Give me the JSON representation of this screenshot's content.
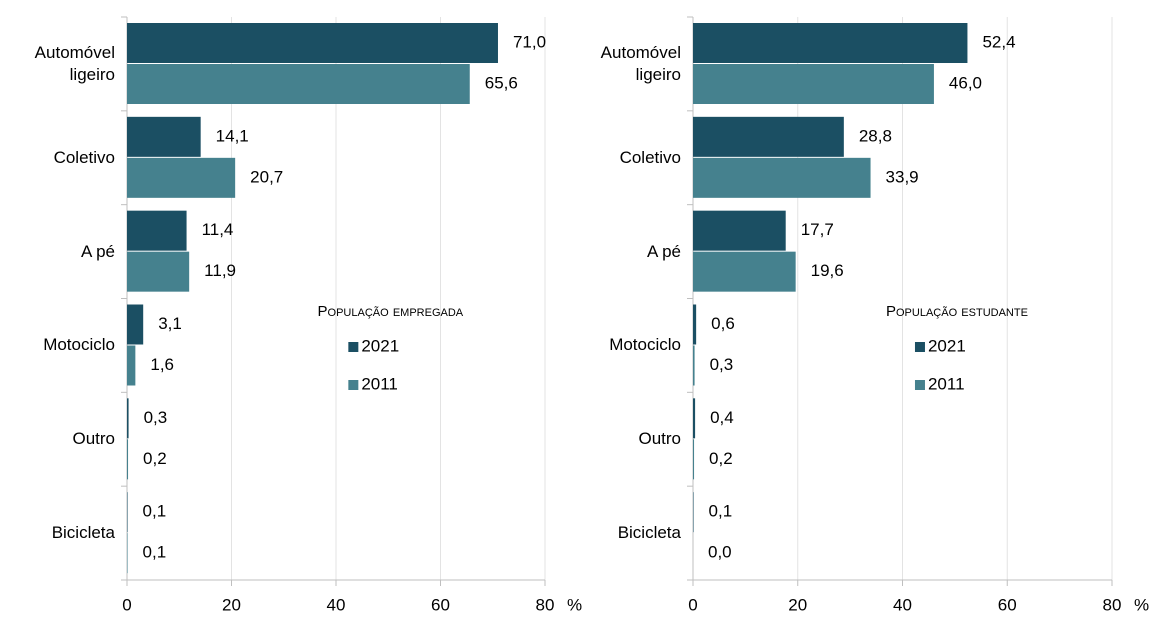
{
  "chart_data": [
    {
      "type": "bar",
      "orientation": "horizontal",
      "categories": [
        "Automóvel ligeiro",
        "Coletivo",
        "A pé",
        "Motociclo",
        "Outro",
        "Bicicleta"
      ],
      "series": [
        {
          "name": "2021",
          "color": "#1b4f63",
          "values": [
            71.0,
            14.1,
            11.4,
            3.1,
            0.3,
            0.1
          ],
          "value_labels": [
            "71,0",
            "14,1",
            "11,4",
            "3,1",
            "0,3",
            "0,1"
          ]
        },
        {
          "name": "2011",
          "color": "#45818e",
          "values": [
            65.6,
            20.7,
            11.9,
            1.6,
            0.2,
            0.1
          ],
          "value_labels": [
            "65,6",
            "20,7",
            "11,9",
            "1,6",
            "0,2",
            "0,1"
          ]
        }
      ],
      "legend_title": "População empregada",
      "xlim": [
        0,
        80
      ],
      "xticks": [
        0,
        20,
        40,
        60,
        80
      ],
      "xlabel": "%",
      "grid": true
    },
    {
      "type": "bar",
      "orientation": "horizontal",
      "categories": [
        "Automóvel ligeiro",
        "Coletivo",
        "A pé",
        "Motociclo",
        "Outro",
        "Bicicleta"
      ],
      "series": [
        {
          "name": "2021",
          "color": "#1b4f63",
          "values": [
            52.4,
            28.8,
            17.7,
            0.6,
            0.4,
            0.1
          ],
          "value_labels": [
            "52,4",
            "28,8",
            "17,7",
            "0,6",
            "0,4",
            "0,1"
          ]
        },
        {
          "name": "2011",
          "color": "#45818e",
          "values": [
            46.0,
            33.9,
            19.6,
            0.3,
            0.2,
            0.0
          ],
          "value_labels": [
            "46,0",
            "33,9",
            "19,6",
            "0,3",
            "0,2",
            "0,0"
          ]
        }
      ],
      "legend_title": "População estudante",
      "xlim": [
        0,
        80
      ],
      "xticks": [
        0,
        20,
        40,
        60,
        80
      ],
      "xlabel": "%",
      "grid": true
    }
  ]
}
